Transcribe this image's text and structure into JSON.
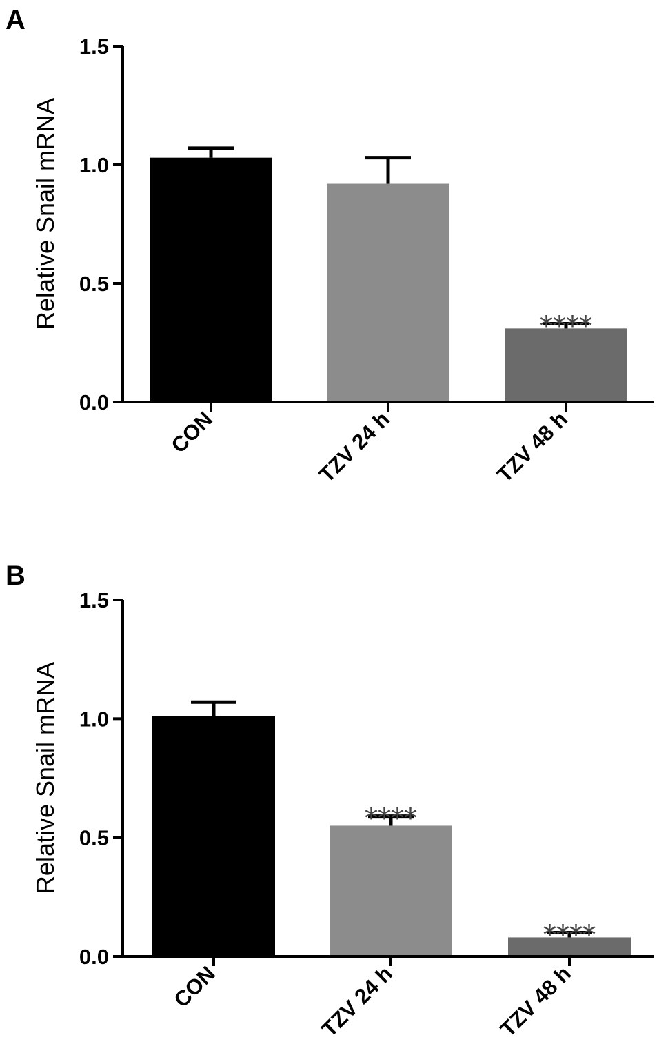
{
  "figure": {
    "panels": [
      "A",
      "B"
    ]
  },
  "chart_data": [
    {
      "type": "bar",
      "panel": "A",
      "categories": [
        "CON",
        "TZV 24 h",
        "TZV 48 h"
      ],
      "values": [
        1.03,
        0.92,
        0.31
      ],
      "errors": [
        0.04,
        0.11,
        0.02
      ],
      "significance": [
        "",
        "",
        "****"
      ],
      "bar_colors": [
        "#000000",
        "#8c8c8c",
        "#6b6b6b"
      ],
      "ylabel": "Relative Snail mRNA",
      "ylim": [
        0,
        1.5
      ],
      "yticks": [
        "0.0",
        "0.5",
        "1.0",
        "1.5"
      ],
      "grid": false
    },
    {
      "type": "bar",
      "panel": "B",
      "categories": [
        "CON",
        "TZV 24 h",
        "TZV 48 h"
      ],
      "values": [
        1.01,
        0.55,
        0.08
      ],
      "errors": [
        0.06,
        0.04,
        0.02
      ],
      "significance": [
        "",
        "****",
        "****"
      ],
      "bar_colors": [
        "#000000",
        "#8c8c8c",
        "#6b6b6b"
      ],
      "ylabel": "Relative Snail mRNA",
      "ylim": [
        0,
        1.5
      ],
      "yticks": [
        "0.0",
        "0.5",
        "1.0",
        "1.5"
      ],
      "grid": false
    }
  ]
}
